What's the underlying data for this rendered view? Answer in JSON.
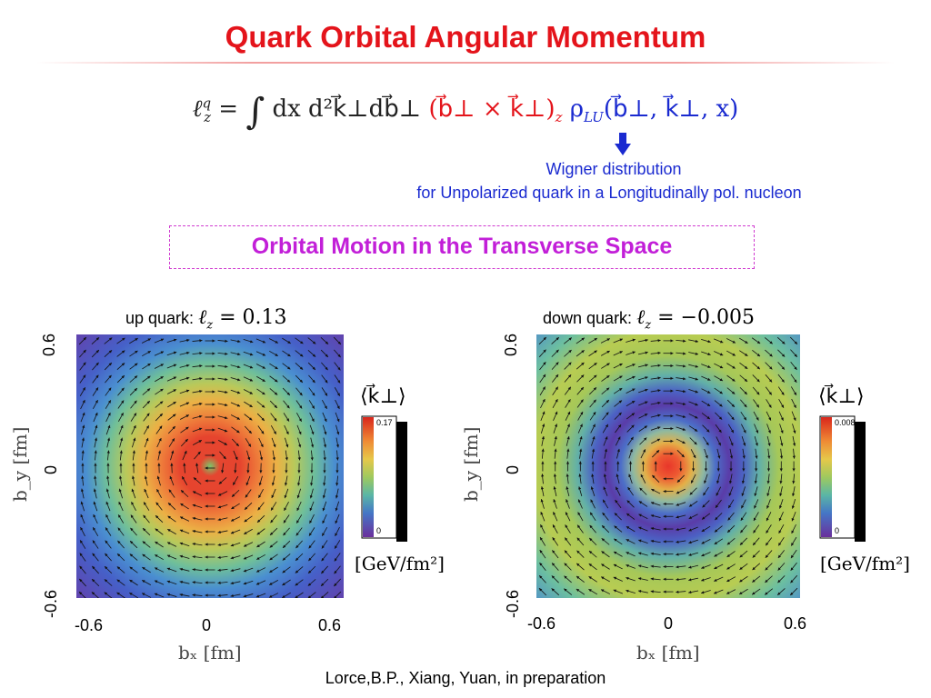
{
  "title": "Quark Orbital Angular Momentum",
  "formula": {
    "lhs": "ℓ",
    "lhs_sup": "q",
    "lhs_sub": "z",
    "eq": " = ",
    "integral": "∫",
    "measure": " dx d²k⃗⊥db⃗⊥ ",
    "cross": "(b⃗⊥ × k⃗⊥)",
    "cross_sub": "z",
    "rho": " ρ",
    "rho_sub": "LU",
    "args": "(b⃗⊥, k⃗⊥, x)"
  },
  "annotation": {
    "line1": "Wigner distribution",
    "line2": "for Unpolarized quark  in a Longitudinally pol. nucleon"
  },
  "section_title": "Orbital Motion in the Transverse Space",
  "panels": [
    {
      "label": "up quark:",
      "lz_symbol": "ℓ",
      "lz_sub": "z",
      "lz_value": " = 0.13",
      "colorbar_top": "0.17",
      "colorbar_bottom": "0",
      "colorbar_title": "⟨k⃗⊥⟩",
      "unit": "[GeV/fm²]",
      "xlabel": "bₓ  [fm]",
      "ylabel": "b_y  [fm]",
      "xticks": [
        "-0.6",
        "0",
        "0.6"
      ],
      "yticks": [
        "0.6",
        "0",
        "-0.6"
      ]
    },
    {
      "label": "down quark:",
      "lz_symbol": "ℓ",
      "lz_sub": "z",
      "lz_value": " = −0.005",
      "colorbar_top": "0.008",
      "colorbar_bottom": "0",
      "colorbar_title": "⟨k⃗⊥⟩",
      "unit": "[GeV/fm²]",
      "xlabel": "bₓ  [fm]",
      "ylabel": "b_y  [fm]",
      "xticks": [
        "-0.6",
        "0",
        "0.6"
      ],
      "yticks": [
        "0.6",
        "0",
        "-0.6"
      ]
    }
  ],
  "citation": "Lorce,B.P., Xiang, Yuan, in preparation",
  "colors": {
    "title": "#e4141b",
    "accent_blue": "#1a2ad0",
    "section": "#c21fd8"
  }
}
